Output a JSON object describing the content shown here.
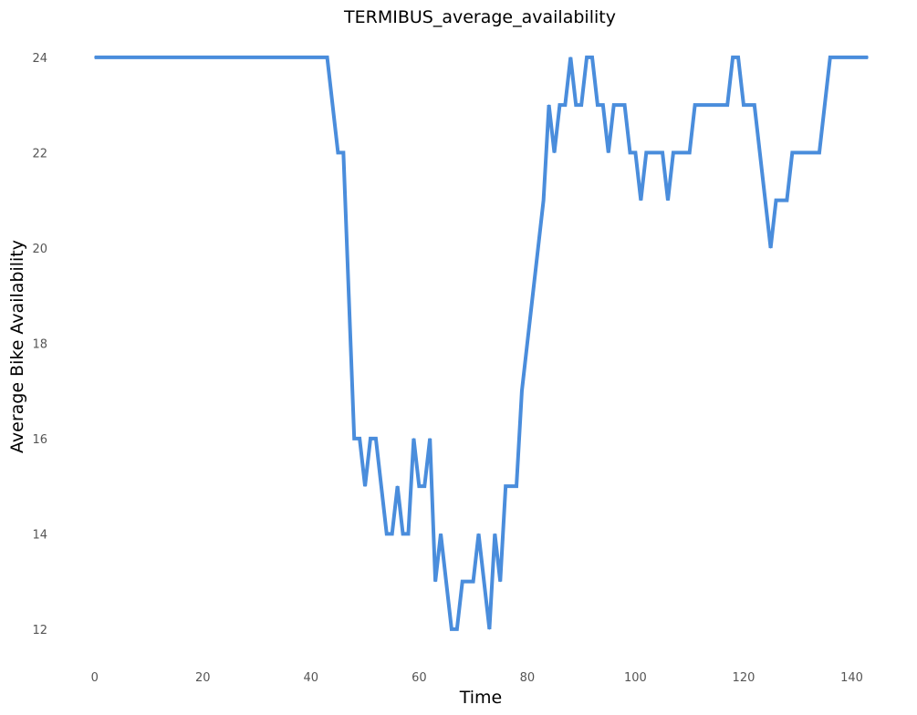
{
  "chart_data": {
    "type": "line",
    "title": "TERMIBUS_average_availability",
    "xlabel": "Time",
    "ylabel": "Average Bike Availability",
    "xlim": [
      -4,
      147
    ],
    "ylim": [
      11.5,
      24.4
    ],
    "xticks": [
      0,
      20,
      40,
      60,
      80,
      100,
      120,
      140
    ],
    "yticks": [
      12,
      14,
      16,
      18,
      20,
      22,
      24
    ],
    "grid": false,
    "legend": "none",
    "series": [
      {
        "color": "#4a8ddc",
        "x": [
          0,
          1,
          2,
          3,
          4,
          5,
          6,
          7,
          8,
          9,
          10,
          11,
          12,
          13,
          14,
          15,
          16,
          17,
          18,
          19,
          20,
          21,
          22,
          23,
          24,
          25,
          26,
          27,
          28,
          29,
          30,
          31,
          32,
          33,
          34,
          35,
          36,
          37,
          38,
          39,
          40,
          41,
          42,
          43,
          44,
          45,
          46,
          47,
          48,
          49,
          50,
          51,
          52,
          53,
          54,
          55,
          56,
          57,
          58,
          59,
          60,
          61,
          62,
          63,
          64,
          65,
          66,
          67,
          68,
          69,
          70,
          71,
          72,
          73,
          74,
          75,
          76,
          77,
          78,
          79,
          80,
          81,
          82,
          83,
          84,
          85,
          86,
          87,
          88,
          89,
          90,
          91,
          92,
          93,
          94,
          95,
          96,
          97,
          98,
          99,
          100,
          101,
          102,
          103,
          104,
          105,
          106,
          107,
          108,
          109,
          110,
          111,
          112,
          113,
          114,
          115,
          116,
          117,
          118,
          119,
          120,
          121,
          122,
          123,
          124,
          125,
          126,
          127,
          128,
          129,
          130,
          131,
          132,
          133,
          134,
          135,
          136,
          137,
          138,
          139,
          140,
          141,
          142,
          143
        ],
        "y": [
          24,
          24,
          24,
          24,
          24,
          24,
          24,
          24,
          24,
          24,
          24,
          24,
          24,
          24,
          24,
          24,
          24,
          24,
          24,
          24,
          24,
          24,
          24,
          24,
          24,
          24,
          24,
          24,
          24,
          24,
          24,
          24,
          24,
          24,
          24,
          24,
          24,
          24,
          24,
          24,
          24,
          24,
          24,
          24,
          23,
          22,
          22,
          19,
          16,
          16,
          15,
          16,
          16,
          15,
          14,
          14,
          15,
          14,
          14,
          16,
          15,
          15,
          16,
          13,
          14,
          13,
          12,
          12,
          13,
          13,
          13,
          14,
          13,
          12,
          14,
          13,
          15,
          15,
          15,
          17,
          18,
          19,
          20,
          21,
          23,
          22,
          23,
          23,
          24,
          23,
          23,
          24,
          24,
          23,
          23,
          22,
          23,
          23,
          23,
          22,
          22,
          21,
          22,
          22,
          22,
          22,
          21,
          22,
          22,
          22,
          22,
          23,
          23,
          23,
          23,
          23,
          23,
          23,
          24,
          24,
          23,
          23,
          23,
          22,
          21,
          20,
          21,
          21,
          21,
          22,
          22,
          22,
          22,
          22,
          22,
          23,
          24,
          24,
          24,
          24,
          24,
          24,
          24,
          24
        ]
      }
    ]
  }
}
